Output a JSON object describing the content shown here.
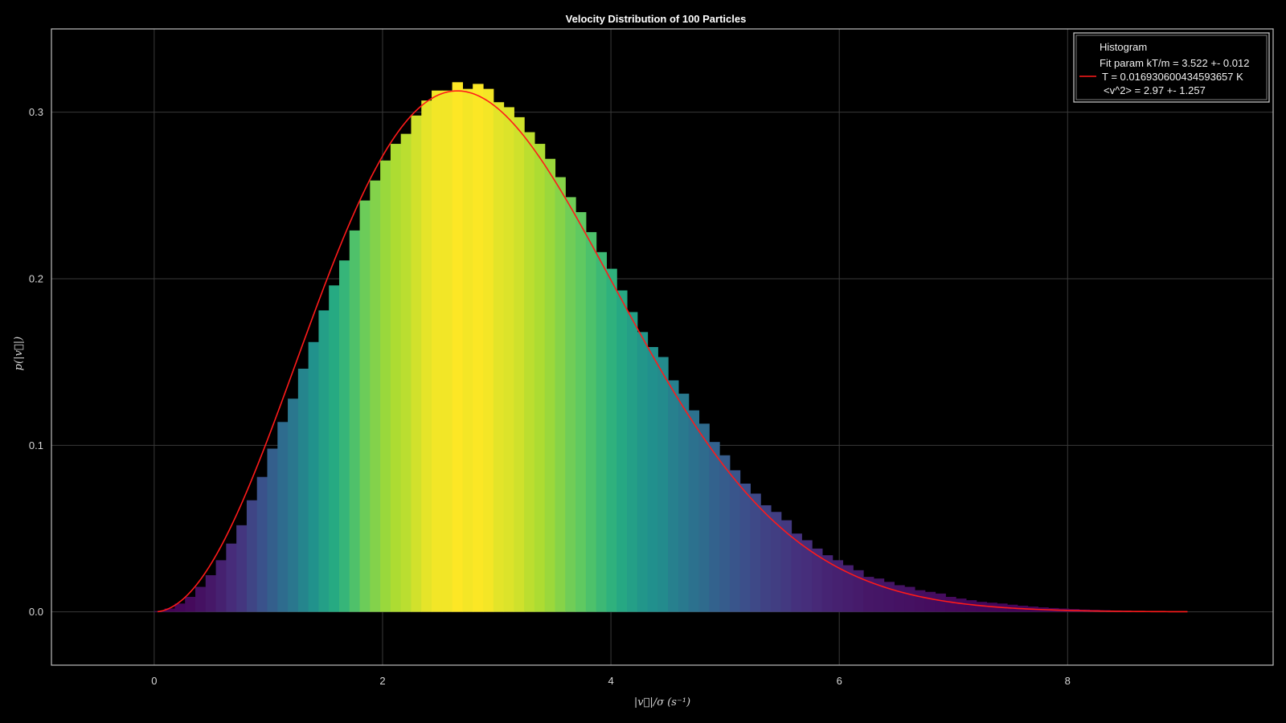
{
  "chart_data": {
    "type": "bar",
    "title": "Velocity Distribution of 100 Particles",
    "xlabel": "|v⃗|/σ (s⁻¹)",
    "ylabel": "p(|v⃗|)",
    "xlim": [
      -0.9,
      9.8
    ],
    "ylim": [
      -0.032,
      0.35
    ],
    "x_ticks": [
      {
        "value": 0,
        "label": "0"
      },
      {
        "value": 2,
        "label": "2"
      },
      {
        "value": 4,
        "label": "4"
      },
      {
        "value": 6,
        "label": "6"
      },
      {
        "value": 8,
        "label": "8"
      }
    ],
    "y_ticks": [
      {
        "value": 0.0,
        "label": "0.0"
      },
      {
        "value": 0.1,
        "label": "0.1"
      },
      {
        "value": 0.2,
        "label": "0.2"
      },
      {
        "value": 0.3,
        "label": "0.3"
      }
    ],
    "grid": true,
    "bin_width": 0.09,
    "bin_start": 0.0,
    "histogram_values": [
      0.0005,
      0.002,
      0.005,
      0.009,
      0.015,
      0.022,
      0.031,
      0.041,
      0.052,
      0.067,
      0.081,
      0.098,
      0.114,
      0.128,
      0.146,
      0.162,
      0.181,
      0.196,
      0.211,
      0.229,
      0.247,
      0.259,
      0.271,
      0.281,
      0.287,
      0.298,
      0.307,
      0.313,
      0.313,
      0.318,
      0.314,
      0.317,
      0.314,
      0.306,
      0.303,
      0.297,
      0.288,
      0.281,
      0.272,
      0.261,
      0.249,
      0.24,
      0.228,
      0.216,
      0.206,
      0.193,
      0.18,
      0.168,
      0.159,
      0.153,
      0.139,
      0.131,
      0.121,
      0.113,
      0.102,
      0.094,
      0.085,
      0.077,
      0.071,
      0.064,
      0.06,
      0.055,
      0.047,
      0.043,
      0.038,
      0.034,
      0.031,
      0.028,
      0.025,
      0.021,
      0.02,
      0.018,
      0.016,
      0.015,
      0.013,
      0.012,
      0.011,
      0.009,
      0.008,
      0.007,
      0.006,
      0.0055,
      0.005,
      0.0043,
      0.0037,
      0.0032,
      0.0027,
      0.0023,
      0.002,
      0.0017,
      0.0014,
      0.0012,
      0.001,
      0.0008,
      0.0007,
      0.0005,
      0.0004
    ],
    "fit_curve": {
      "kT_over_m": 3.522,
      "x_range": [
        0.03,
        9.05
      ],
      "color": "#ff1a1a"
    },
    "colormap": "viridis",
    "legend": {
      "placement": "top-right",
      "entries": [
        {
          "label": "Histogram"
        },
        {
          "label": "Fit param kT/m = 3.522 +- 0.012"
        },
        {
          "label": "T = 0.016930600434593657 K"
        },
        {
          "label": "<v^2> = 2.97 +- 1.257"
        }
      ]
    }
  }
}
